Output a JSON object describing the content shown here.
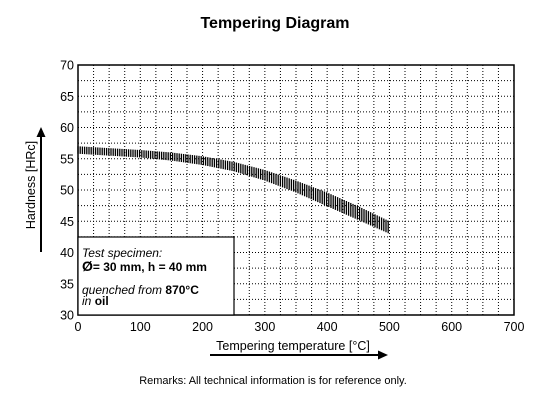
{
  "chart_data": {
    "type": "line",
    "title": "Tempering Diagram",
    "xlabel": "Tempering temperature [°C]",
    "ylabel": "Hardness [HRc]",
    "xlim": [
      0,
      700
    ],
    "ylim": [
      30,
      70
    ],
    "x_ticks": [
      "0",
      "100",
      "200",
      "300",
      "400",
      "500",
      "600",
      "700"
    ],
    "y_ticks": [
      "30",
      "35",
      "40",
      "45",
      "50",
      "55",
      "60",
      "65",
      "70"
    ],
    "grid": "dotted",
    "series": [
      {
        "style": "hardness band",
        "x": [
          0,
          50,
          100,
          150,
          200,
          250,
          300,
          350,
          400,
          450,
          500
        ],
        "upper": [
          57.0,
          56.7,
          56.4,
          56.0,
          55.4,
          54.5,
          53.2,
          51.5,
          49.6,
          47.4,
          45.0
        ],
        "lower": [
          55.8,
          55.5,
          55.2,
          54.7,
          54.0,
          53.0,
          51.5,
          49.6,
          47.4,
          45.2,
          43.0
        ]
      }
    ],
    "annotation": {
      "line1": "Test specimen:",
      "line2_symbol": "Ø",
      "line2": "= 30 mm, h = 40 mm",
      "line3_prefix": "quenched from ",
      "line3_value": "870°C",
      "line4_prefix": "in ",
      "line4_value": "oil"
    }
  },
  "remarks": "Remarks: All technical information is for reference only."
}
